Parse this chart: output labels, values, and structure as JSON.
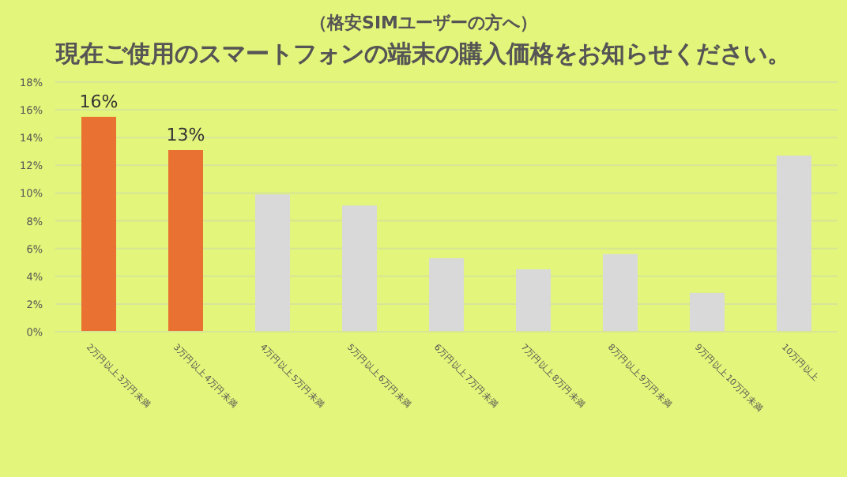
{
  "chart_data": {
    "type": "bar",
    "title": "現在ご使用のスマートフォンの端末の購入価格をお知らせください。",
    "subtitle": "（格安SIMユーザーの方へ）",
    "categories": [
      "2万円以上3万円未満",
      "3万円以上4万円未満",
      "4万円以上5万円未満",
      "5万円以上6万円未満",
      "6万円以上7万円未満",
      "7万円以上8万円未満",
      "8万円以上9万円未満",
      "9万円以上10万円未満",
      "10万円以上"
    ],
    "values": [
      15.5,
      13.1,
      9.9,
      9.1,
      5.3,
      4.5,
      5.6,
      2.8,
      12.7
    ],
    "value_labels": [
      "16%",
      "13%",
      null,
      null,
      null,
      null,
      null,
      null,
      null
    ],
    "colors": [
      "#e97132",
      "#e97132",
      "#d9d9d9",
      "#d9d9d9",
      "#d9d9d9",
      "#d9d9d9",
      "#d9d9d9",
      "#d9d9d9",
      "#d9d9d9"
    ],
    "ylim": [
      0,
      18
    ],
    "yticks": [
      {
        "value": 0,
        "label": "0%"
      },
      {
        "value": 2,
        "label": "2%"
      },
      {
        "value": 4,
        "label": "4%"
      },
      {
        "value": 6,
        "label": "6%"
      },
      {
        "value": 8,
        "label": "8%"
      },
      {
        "value": 10,
        "label": "10%"
      },
      {
        "value": 12,
        "label": "12%"
      },
      {
        "value": 14,
        "label": "14%"
      },
      {
        "value": 16,
        "label": "16%"
      },
      {
        "value": 18,
        "label": "18%"
      }
    ],
    "grid": "y"
  }
}
